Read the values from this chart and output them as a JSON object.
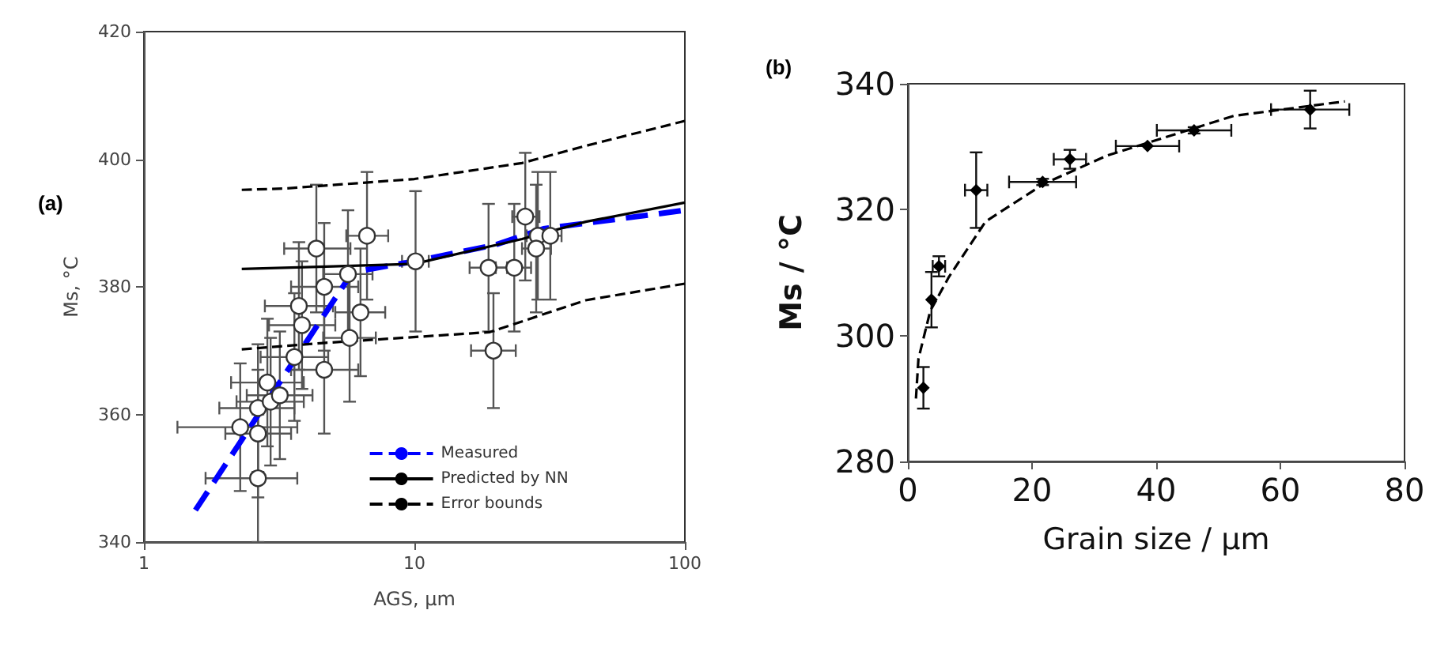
{
  "chart_data": [
    {
      "type": "scatter",
      "xlabel": "AGS, μm",
      "ylabel": "Ms, °C",
      "annotations": [
        "(a)"
      ],
      "log": "x",
      "xlim": [
        1,
        100
      ],
      "xticks": [
        1,
        10,
        100
      ],
      "ylim": [
        340,
        420
      ],
      "yticks": [
        340,
        360,
        380,
        400,
        420
      ],
      "legend": "bottom",
      "series": [
        {
          "color": "#ffffff",
          "marker": "circle",
          "x": [
            2.27,
            2.64,
            2.64,
            2.64,
            2.94,
            2.86,
            3.18,
            3.45,
            3.6,
            3.74,
            3.84,
            4.64,
            4.64,
            4.34,
            5.68,
            6.32,
            5.76,
            6.68,
            10.1,
            18.8,
            23.4,
            19.6,
            25.7,
            28.6,
            31.8,
            28.2
          ],
          "values": [
            358,
            357,
            350,
            361,
            362,
            365,
            363,
            null,
            369,
            377,
            374,
            380,
            367,
            386,
            382,
            376,
            372,
            388,
            384,
            383,
            383,
            370,
            391,
            388,
            388,
            386
          ],
          "errors": [
            10,
            10,
            10,
            10,
            10,
            10,
            10,
            null,
            10,
            10,
            10,
            10,
            10,
            10,
            10,
            10,
            10,
            10,
            11,
            10,
            10,
            9,
            10,
            10,
            10,
            10
          ],
          "xerrors": [
            [
              1.33,
              3.69
            ],
            [
              2.0,
              3.5
            ],
            [
              1.69,
              3.69
            ],
            [
              1.9,
              3.6
            ],
            [
              2.2,
              3.9
            ],
            [
              2.1,
              3.9
            ],
            [
              2.4,
              4.2
            ],
            null,
            [
              2.7,
              4.8
            ],
            [
              2.8,
              5.0
            ],
            [
              2.9,
              5.1
            ],
            [
              3.5,
              6.2
            ],
            [
              3.5,
              6.2
            ],
            [
              3.3,
              5.8
            ],
            [
              4.6,
              7.0
            ],
            [
              5.1,
              7.8
            ],
            [
              4.6,
              7.2
            ],
            [
              5.6,
              8.0
            ],
            [
              9.0,
              11.3
            ],
            [
              16,
              22
            ],
            [
              20,
              27
            ],
            [
              16.2,
              23.7
            ],
            [
              23,
              29
            ],
            [
              26,
              32
            ],
            [
              29,
              35
            ],
            [
              25,
              32
            ]
          ]
        },
        {
          "type": "line",
          "name": "Measured",
          "color": "#0000ff",
          "line_style": "dashed",
          "x": [
            1.55,
            5.9,
            10,
            20,
            30,
            100
          ],
          "values": [
            345,
            382.3,
            384,
            386.6,
            389.1,
            392
          ]
        },
        {
          "type": "line",
          "name": "Predicted by NN",
          "color": "#000000",
          "line_style": "solid",
          "x": [
            2.3,
            5,
            10,
            25,
            43,
            100
          ],
          "values": [
            382.8,
            383.2,
            383.6,
            387.5,
            390.2,
            393.2
          ]
        },
        {
          "type": "line",
          "name": "Error bounds",
          "color": "#000000",
          "line_style": "dashed",
          "x": [
            2.3,
            3.3,
            10,
            25,
            43,
            100
          ],
          "values": [
            395.2,
            395.4,
            396.9,
            399.4,
            402.1,
            406
          ]
        },
        {
          "type": "line",
          "color": "#000000",
          "line_style": "dashed",
          "x": [
            2.3,
            4.6,
            19,
            43,
            100
          ],
          "values": [
            370.2,
            371.2,
            372.9,
            377.9,
            380.5
          ]
        }
      ]
    },
    {
      "type": "scatter",
      "xlabel": "Grain size / μm",
      "ylabel": "Ms / °C",
      "annotations": [
        "(b)"
      ],
      "xlim": [
        0,
        80
      ],
      "xticks": [
        0,
        20,
        40,
        60,
        80
      ],
      "ylim": [
        280,
        340
      ],
      "yticks": [
        280,
        300,
        320,
        340
      ],
      "series": [
        {
          "color": "#000000",
          "marker": "diamond",
          "x": [
            2.5,
            3.8,
            5.0,
            11.0,
            21.7,
            26.1,
            38.6,
            46.1,
            64.8
          ],
          "values": [
            291.7,
            305.7,
            311.0,
            323.1,
            324.4,
            328.0,
            330.1,
            332.6,
            335.9
          ],
          "errors": [
            3.3,
            4.4,
            1.6,
            6.0,
            0.5,
            1.5,
            null,
            0.5,
            3.0
          ],
          "xerrors": [
            null,
            null,
            1.0,
            1.8,
            5.4,
            2.6,
            5.1,
            6.0,
            6.3
          ]
        },
        {
          "type": "line",
          "color": "#000000",
          "line_style": "dashed",
          "x": [
            1.3,
            1.7,
            3.6,
            6.6,
            12.5,
            21.9,
            32.1,
            52.5,
            70.4
          ],
          "values": [
            290,
            296.3,
            303.9,
            309.3,
            318.1,
            324.1,
            328.6,
            334.9,
            337.2
          ]
        }
      ]
    }
  ]
}
